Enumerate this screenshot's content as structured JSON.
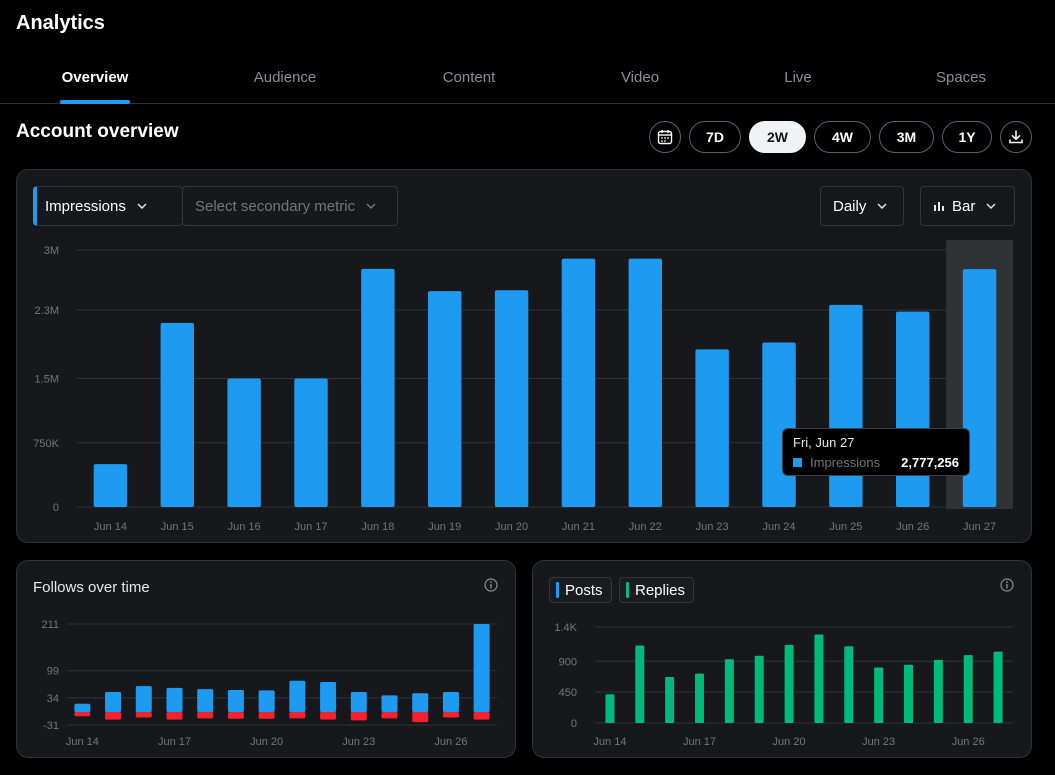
{
  "header": {
    "title": "Analytics"
  },
  "tabs": [
    {
      "label": "Overview",
      "active": true
    },
    {
      "label": "Audience",
      "active": false
    },
    {
      "label": "Content",
      "active": false
    },
    {
      "label": "Video",
      "active": false
    },
    {
      "label": "Live",
      "active": false
    },
    {
      "label": "Spaces",
      "active": false
    }
  ],
  "overview": {
    "title": "Account overview",
    "calendar_icon": "calendar-icon",
    "download_icon": "download-icon",
    "ranges": [
      {
        "label": "7D",
        "selected": false
      },
      {
        "label": "2W",
        "selected": true
      },
      {
        "label": "4W",
        "selected": false
      },
      {
        "label": "3M",
        "selected": false
      },
      {
        "label": "1Y",
        "selected": false
      }
    ]
  },
  "main_panel": {
    "primary_metric": "Impressions",
    "secondary_metric_placeholder": "Select secondary metric",
    "granularity": "Daily",
    "chart_kind": "Bar",
    "tooltip": {
      "date": "Fri, Jun 27",
      "label": "Impressions",
      "value": "2,777,256"
    }
  },
  "follows_panel": {
    "title": "Follows over time"
  },
  "posts_panel": {
    "legend": [
      {
        "label": "Posts",
        "color": "#1d9bf0"
      },
      {
        "label": "Replies",
        "color": "#00ba7c"
      }
    ]
  },
  "colors": {
    "accent": "#1d9bf0",
    "green": "#00ba7c",
    "red": "#f4212e"
  },
  "chart_data": [
    {
      "type": "bar",
      "title": "",
      "series": [
        {
          "name": "Impressions",
          "values": [
            500000,
            2150000,
            1500000,
            1500000,
            2780000,
            2520000,
            2530000,
            2900000,
            2900000,
            1840000,
            1920000,
            2360000,
            2280000,
            2777256
          ]
        }
      ],
      "categories": [
        "Jun 14",
        "Jun 15",
        "Jun 16",
        "Jun 17",
        "Jun 18",
        "Jun 19",
        "Jun 20",
        "Jun 21",
        "Jun 22",
        "Jun 23",
        "Jun 24",
        "Jun 25",
        "Jun 26",
        "Jun 27"
      ],
      "y_ticks": [
        "0",
        "750K",
        "1.5M",
        "2.3M",
        "3M"
      ],
      "ylim": [
        0,
        3000000
      ],
      "highlight_index": 13,
      "grid": true
    },
    {
      "type": "bar",
      "title": "Follows over time",
      "categories": [
        "Jun 14",
        "Jun 15",
        "Jun 16",
        "Jun 17",
        "Jun 18",
        "Jun 19",
        "Jun 20",
        "Jun 21",
        "Jun 22",
        "Jun 23",
        "Jun 24",
        "Jun 25",
        "Jun 26",
        "Jun 27"
      ],
      "x_tick_labels": [
        "Jun 14",
        "Jun 17",
        "Jun 20",
        "Jun 23",
        "Jun 26"
      ],
      "y_ticks": [
        "-31",
        "34",
        "99",
        "211"
      ],
      "series": [
        {
          "name": "",
          "values": [
            20,
            48,
            62,
            58,
            55,
            53,
            52,
            75,
            72,
            48,
            40,
            45,
            48,
            211
          ]
        },
        {
          "name": "",
          "values": [
            -10,
            -18,
            -13,
            -18,
            -15,
            -16,
            -16,
            -15,
            -18,
            -20,
            -15,
            -24,
            -13,
            -18
          ]
        }
      ],
      "ylim": [
        -31,
        211
      ],
      "grid": true
    },
    {
      "type": "bar",
      "title": "",
      "categories": [
        "Jun 14",
        "Jun 15",
        "Jun 16",
        "Jun 17",
        "Jun 18",
        "Jun 19",
        "Jun 20",
        "Jun 21",
        "Jun 22",
        "Jun 23",
        "Jun 24",
        "Jun 25",
        "Jun 26",
        "Jun 27"
      ],
      "x_tick_labels": [
        "Jun 14",
        "Jun 17",
        "Jun 20",
        "Jun 23",
        "Jun 26"
      ],
      "y_ticks": [
        "0",
        "450",
        "900",
        "1.4K"
      ],
      "series": [
        {
          "name": "Posts",
          "values": [
            0,
            0,
            0,
            0,
            0,
            0,
            0,
            0,
            0,
            0,
            0,
            0,
            0,
            0
          ]
        },
        {
          "name": "Replies",
          "values": [
            420,
            1130,
            670,
            720,
            930,
            980,
            1140,
            1290,
            1120,
            810,
            850,
            920,
            990,
            1040
          ]
        }
      ],
      "ylim": [
        0,
        1400
      ],
      "grid": true
    }
  ]
}
